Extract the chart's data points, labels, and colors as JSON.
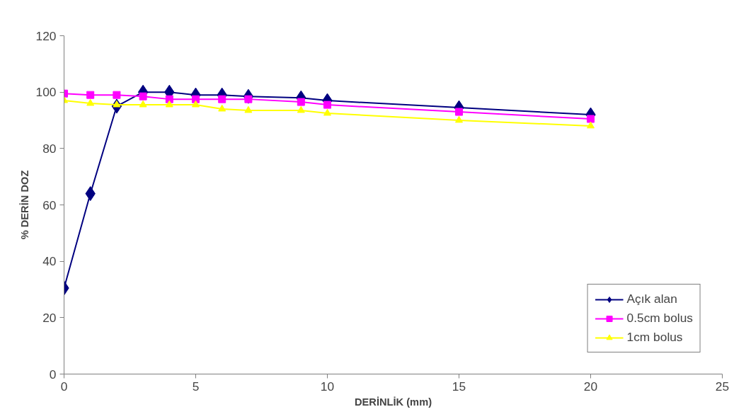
{
  "chart_data": {
    "type": "line",
    "xlabel": "DERİNLİK (mm)",
    "ylabel": "% DERİN DOZ",
    "x": [
      0,
      1,
      2,
      3,
      4,
      5,
      6,
      7,
      9,
      10,
      15,
      20
    ],
    "series": [
      {
        "name": "Açık alan",
        "color": "#000080",
        "marker": "diamond",
        "values": [
          30.5,
          64,
          95,
          100,
          100,
          99,
          99,
          98.5,
          98,
          97,
          94.5,
          92
        ]
      },
      {
        "name": "0.5cm bolus",
        "color": "#ff00ff",
        "marker": "square",
        "values": [
          99.5,
          99,
          99,
          98.5,
          97.5,
          97.5,
          97.5,
          97.5,
          96.5,
          95.5,
          93,
          90.5
        ]
      },
      {
        "name": "1cm bolus",
        "color": "#ffff00",
        "marker": "triangle",
        "values": [
          97,
          96,
          95.5,
          95.5,
          95.5,
          95.5,
          94,
          93.5,
          93.5,
          92.5,
          90,
          88
        ]
      }
    ],
    "xlim": [
      0,
      25
    ],
    "xticks": [
      0,
      5,
      10,
      15,
      20,
      25
    ],
    "ylim": [
      0,
      120
    ],
    "yticks": [
      0,
      20,
      40,
      60,
      80,
      100,
      120
    ],
    "grid": false,
    "legend": "bottom right",
    "line_style": "solid"
  }
}
